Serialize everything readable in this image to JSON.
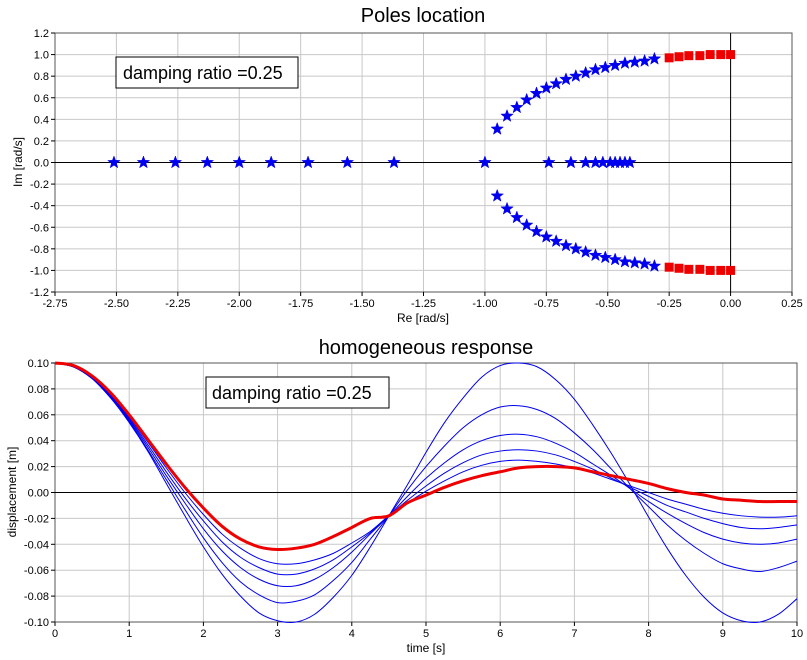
{
  "chart_data": [
    {
      "type": "scatter",
      "title": "Poles location",
      "xlabel": "Re [rad/s]",
      "ylabel": "Im [rad/s]",
      "xlim": [
        -2.75,
        0.25
      ],
      "ylim": [
        -1.2,
        1.2
      ],
      "grid": true,
      "annotation": "damping ratio =0.25",
      "x_ticks": [
        "-2.75",
        "-2.50",
        "-2.25",
        "-2.00",
        "-1.75",
        "-1.50",
        "-1.25",
        "-1.00",
        "-0.75",
        "-0.50",
        "-0.25",
        "0.00",
        "0.25"
      ],
      "y_ticks": [
        "-1.2",
        "-1.0",
        "-0.8",
        "-0.6",
        "-0.4",
        "-0.2",
        "0.0",
        "0.2",
        "0.4",
        "0.6",
        "0.8",
        "1.0",
        "1.2"
      ],
      "series": [
        {
          "marker": "star",
          "color": "#0000ee",
          "points": [
            [
              -2.51,
              0
            ],
            [
              -2.39,
              0
            ],
            [
              -2.26,
              0
            ],
            [
              -2.13,
              0
            ],
            [
              -2.0,
              0
            ],
            [
              -1.87,
              0
            ],
            [
              -1.72,
              0
            ],
            [
              -1.56,
              0
            ],
            [
              -1.37,
              0
            ],
            [
              -1.0,
              0
            ],
            [
              -0.74,
              0
            ],
            [
              -0.65,
              0
            ],
            [
              -0.59,
              0
            ],
            [
              -0.55,
              0
            ],
            [
              -0.52,
              0
            ],
            [
              -0.49,
              0
            ],
            [
              -0.47,
              0
            ],
            [
              -0.45,
              0
            ],
            [
              -0.43,
              0
            ],
            [
              -0.41,
              0
            ],
            [
              -0.95,
              0.31
            ],
            [
              -0.91,
              0.43
            ],
            [
              -0.87,
              0.51
            ],
            [
              -0.83,
              0.58
            ],
            [
              -0.79,
              0.64
            ],
            [
              -0.75,
              0.69
            ],
            [
              -0.71,
              0.73
            ],
            [
              -0.67,
              0.77
            ],
            [
              -0.63,
              0.8
            ],
            [
              -0.59,
              0.83
            ],
            [
              -0.55,
              0.86
            ],
            [
              -0.51,
              0.88
            ],
            [
              -0.47,
              0.9
            ],
            [
              -0.43,
              0.92
            ],
            [
              -0.39,
              0.93
            ],
            [
              -0.35,
              0.94
            ],
            [
              -0.31,
              0.96
            ],
            [
              -0.95,
              -0.31
            ],
            [
              -0.91,
              -0.43
            ],
            [
              -0.87,
              -0.51
            ],
            [
              -0.83,
              -0.58
            ],
            [
              -0.79,
              -0.64
            ],
            [
              -0.75,
              -0.69
            ],
            [
              -0.71,
              -0.73
            ],
            [
              -0.67,
              -0.77
            ],
            [
              -0.63,
              -0.8
            ],
            [
              -0.59,
              -0.83
            ],
            [
              -0.55,
              -0.86
            ],
            [
              -0.51,
              -0.88
            ],
            [
              -0.47,
              -0.9
            ],
            [
              -0.43,
              -0.92
            ],
            [
              -0.39,
              -0.93
            ],
            [
              -0.35,
              -0.94
            ],
            [
              -0.31,
              -0.96
            ]
          ]
        },
        {
          "marker": "square",
          "color": "#ee0000",
          "points": [
            [
              -0.25,
              0.97
            ],
            [
              -0.21,
              0.98
            ],
            [
              -0.17,
              0.99
            ],
            [
              -0.125,
              0.99
            ],
            [
              -0.083,
              1.0
            ],
            [
              -0.04,
              1.0
            ],
            [
              0.0,
              1.0
            ],
            [
              -0.25,
              -0.97
            ],
            [
              -0.21,
              -0.98
            ],
            [
              -0.17,
              -0.99
            ],
            [
              -0.125,
              -0.99
            ],
            [
              -0.083,
              -1.0
            ],
            [
              -0.04,
              -1.0
            ],
            [
              0.0,
              -1.0
            ]
          ]
        }
      ]
    },
    {
      "type": "line",
      "title": "homogeneous response",
      "xlabel": "time [s]",
      "ylabel": "displacement [m]",
      "xlim": [
        0,
        10
      ],
      "ylim": [
        -0.1,
        0.1
      ],
      "grid": true,
      "annotation": "damping ratio =0.25",
      "x_ticks": [
        "0",
        "1",
        "2",
        "3",
        "4",
        "5",
        "6",
        "7",
        "8",
        "9",
        "10"
      ],
      "y_ticks": [
        "0.10",
        "0.08",
        "0.06",
        "0.04",
        "0.02",
        "0.00",
        "-0.02",
        "-0.04",
        "-0.06",
        "-0.08",
        "-0.10"
      ],
      "x": [
        0,
        0.25,
        0.5,
        0.75,
        1,
        1.25,
        1.5,
        1.75,
        2,
        2.25,
        2.5,
        2.75,
        3,
        3.25,
        3.5,
        3.75,
        4,
        4.25,
        4.5,
        4.75,
        5,
        5.25,
        5.5,
        5.75,
        6,
        6.25,
        6.5,
        6.75,
        7,
        7.25,
        7.5,
        7.75,
        8,
        8.25,
        8.5,
        8.75,
        9,
        9.25,
        9.5,
        9.75,
        10
      ],
      "series": [
        {
          "color": "#0000ee",
          "width": 1,
          "values": [
            0.1,
            0.097,
            0.088,
            0.073,
            0.054,
            0.032,
            0.007,
            -0.018,
            -0.042,
            -0.063,
            -0.08,
            -0.093,
            -0.099,
            -0.1,
            -0.094,
            -0.081,
            -0.064,
            -0.042,
            -0.018,
            0.006,
            0.031,
            0.054,
            0.073,
            0.089,
            0.098,
            0.1,
            0.097,
            0.087,
            0.072,
            0.052,
            0.03,
            0.006,
            -0.019,
            -0.043,
            -0.064,
            -0.081,
            -0.093,
            -0.099,
            -0.1,
            -0.094,
            -0.082
          ]
        },
        {
          "color": "#0000ee",
          "width": 1,
          "values": [
            0.1,
            0.097,
            0.088,
            0.073,
            0.055,
            0.033,
            0.01,
            -0.013,
            -0.035,
            -0.054,
            -0.069,
            -0.079,
            -0.085,
            -0.084,
            -0.079,
            -0.068,
            -0.054,
            -0.036,
            -0.018,
            0.002,
            0.02,
            0.036,
            0.05,
            0.06,
            0.066,
            0.067,
            0.064,
            0.057,
            0.046,
            0.033,
            0.018,
            0.003,
            -0.011,
            -0.025,
            -0.037,
            -0.047,
            -0.055,
            -0.059,
            -0.061,
            -0.058,
            -0.053
          ]
        },
        {
          "color": "#0000ee",
          "width": 1,
          "values": [
            0.1,
            0.097,
            0.088,
            0.074,
            0.056,
            0.035,
            0.013,
            -0.008,
            -0.028,
            -0.045,
            -0.058,
            -0.067,
            -0.072,
            -0.072,
            -0.067,
            -0.058,
            -0.046,
            -0.032,
            -0.018,
            -0.003,
            0.011,
            0.023,
            0.033,
            0.04,
            0.044,
            0.045,
            0.043,
            0.038,
            0.031,
            0.022,
            0.013,
            0.003,
            -0.007,
            -0.016,
            -0.024,
            -0.031,
            -0.036,
            -0.039,
            -0.04,
            -0.039,
            -0.036
          ]
        },
        {
          "color": "#0000ee",
          "width": 1,
          "values": [
            0.1,
            0.097,
            0.089,
            0.075,
            0.057,
            0.037,
            0.016,
            -0.004,
            -0.022,
            -0.038,
            -0.05,
            -0.058,
            -0.063,
            -0.063,
            -0.059,
            -0.052,
            -0.042,
            -0.031,
            -0.018,
            -0.006,
            0.005,
            0.015,
            0.023,
            0.029,
            0.032,
            0.033,
            0.032,
            0.029,
            0.024,
            0.018,
            0.011,
            0.004,
            -0.003,
            -0.01,
            -0.015,
            -0.02,
            -0.024,
            -0.027,
            -0.028,
            -0.027,
            -0.025
          ]
        },
        {
          "color": "#0000ee",
          "width": 1,
          "values": [
            0.1,
            0.097,
            0.089,
            0.075,
            0.058,
            0.039,
            0.019,
            0.0,
            -0.017,
            -0.032,
            -0.043,
            -0.051,
            -0.055,
            -0.055,
            -0.052,
            -0.047,
            -0.039,
            -0.03,
            -0.018,
            -0.008,
            0.001,
            0.009,
            0.016,
            0.021,
            0.024,
            0.025,
            0.024,
            0.022,
            0.019,
            0.015,
            0.01,
            0.005,
            0.0,
            -0.005,
            -0.009,
            -0.013,
            -0.016,
            -0.018,
            -0.019,
            -0.019,
            -0.018
          ]
        },
        {
          "color": "#ee0000",
          "width": 3,
          "values": [
            0.1,
            0.098,
            0.09,
            0.077,
            0.06,
            0.041,
            0.022,
            0.004,
            -0.012,
            -0.026,
            -0.036,
            -0.042,
            -0.044,
            -0.043,
            -0.04,
            -0.034,
            -0.027,
            -0.02,
            -0.018,
            -0.008,
            -0.002,
            0.004,
            0.009,
            0.013,
            0.016,
            0.019,
            0.02,
            0.02,
            0.019,
            0.016,
            0.013,
            0.01,
            0.007,
            0.003,
            0.0,
            -0.002,
            -0.005,
            -0.006,
            -0.007,
            -0.007,
            -0.007
          ]
        }
      ]
    }
  ]
}
